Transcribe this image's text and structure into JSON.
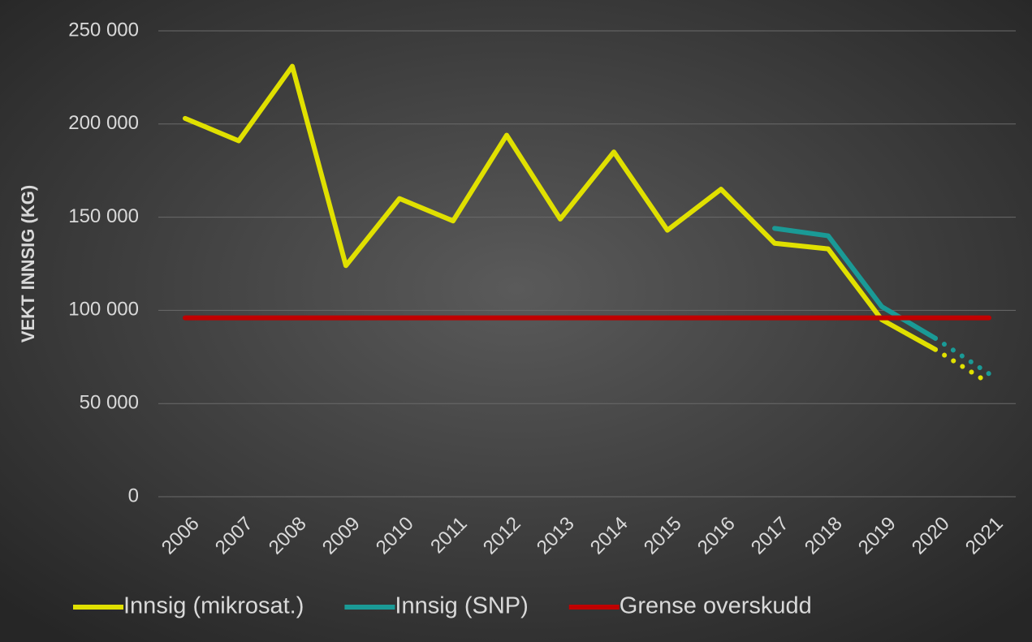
{
  "chart_data": {
    "type": "line",
    "y_label": "VEKT INNSIG (KG)",
    "categories": [
      "2006",
      "2007",
      "2008",
      "2009",
      "2010",
      "2011",
      "2012",
      "2013",
      "2014",
      "2015",
      "2016",
      "2017",
      "2018",
      "2019",
      "2020",
      "2021"
    ],
    "series": [
      {
        "name": "Innsig (mikrosat.)",
        "color": "#e0e000",
        "dotted_segments": [
          14
        ],
        "values": [
          203000,
          191000,
          231000,
          124000,
          160000,
          148000,
          194000,
          149000,
          185000,
          143000,
          165000,
          136000,
          133000,
          95000,
          79000,
          61000
        ]
      },
      {
        "name": "Innsig (SNP)",
        "color": "#1a9a96",
        "dotted_segments": [
          14
        ],
        "values": [
          null,
          null,
          null,
          null,
          null,
          null,
          null,
          null,
          null,
          null,
          null,
          144000,
          140000,
          102000,
          85000,
          66000
        ]
      },
      {
        "name": "Grense overskudd",
        "color": "#c00000",
        "values": [
          96000,
          96000,
          96000,
          96000,
          96000,
          96000,
          96000,
          96000,
          96000,
          96000,
          96000,
          96000,
          96000,
          96000,
          96000,
          96000
        ]
      }
    ],
    "ylim": [
      0,
      250000
    ],
    "yticks": [
      0,
      {
        "value": 50000,
        "label": "50 000"
      },
      {
        "value": 100000,
        "label": "100 000"
      },
      {
        "value": 150000,
        "label": "150 000"
      },
      {
        "value": 200000,
        "label": "200 000"
      },
      {
        "value": 250000,
        "label": "250 000"
      }
    ],
    "grid": true,
    "legend": "bottom"
  }
}
